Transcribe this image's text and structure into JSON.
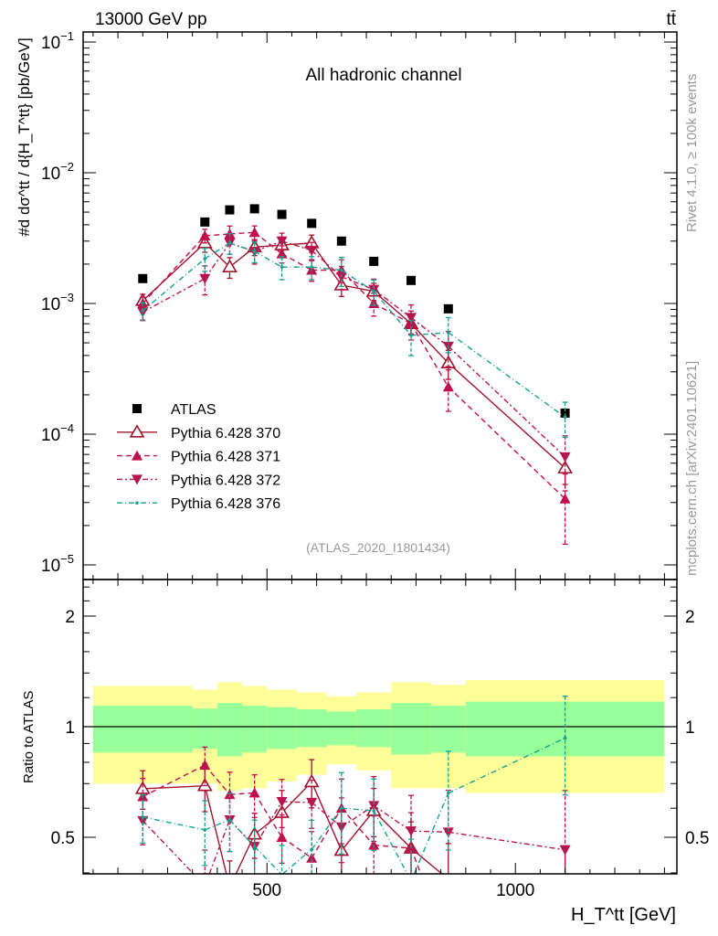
{
  "header": {
    "energy_label": "13000 GeV pp",
    "process_label": "tt̄",
    "channel_label": "All hadronic channel",
    "analysis_label": "(ATLAS_2020_I1801434)",
    "rivet_label": "Rivet 4.1.0, ≥ 100k events",
    "mcplots_label": "mcplots.cern.ch [arXiv:2401.10621]"
  },
  "colors": {
    "atlas": "#000000",
    "p370": "#a1122c",
    "p371": "#c0104c",
    "p372": "#b8154f",
    "p376": "#14a391",
    "band_inner": "#99ff99",
    "band_outer": "#ffff99"
  },
  "chart_data": {
    "type": "scatter",
    "title": "All hadronic channel",
    "xlabel": "H_T^tt [GeV]",
    "ylabel": "#d dσ^tt / d{H_T^tt} [pb/GeV]",
    "ratio_ylabel": "Ratio to ATLAS",
    "xlim": [
      130,
      1325
    ],
    "ylim": [
      1e-05,
      0.12
    ],
    "ratio_ylim": [
      0.4,
      2.5
    ],
    "yscale": "log",
    "x_ticks": [
      500,
      1000
    ],
    "x_tick_labels": [
      "500",
      "1000"
    ],
    "y_ticks": [
      0.1,
      0.01,
      0.001,
      0.0001,
      1e-05
    ],
    "y_tick_labels": [
      {
        "base": "10",
        "exp": "−1"
      },
      {
        "base": "10",
        "exp": "−2"
      },
      {
        "base": "10",
        "exp": "−3"
      },
      {
        "base": "10",
        "exp": "−4"
      },
      {
        "base": "10",
        "exp": "−5"
      }
    ],
    "ratio_ticks": [
      0.5,
      1,
      2
    ],
    "ratio_tick_labels": [
      "0.5",
      "1",
      "2"
    ],
    "legend_position": "lower-left",
    "bin_edges": [
      150,
      350,
      400,
      450,
      500,
      560,
      620,
      680,
      750,
      830,
      900,
      1300
    ],
    "x": [
      250,
      375,
      425,
      475,
      530,
      590,
      650,
      715,
      790,
      865,
      1100
    ],
    "data": {
      "name": "ATLAS",
      "values": [
        0.00155,
        0.0042,
        0.0052,
        0.0053,
        0.0048,
        0.0041,
        0.003,
        0.0021,
        0.0015,
        0.00091,
        0.000145
      ],
      "band_inner": {
        "low": [
          0.85,
          0.87,
          0.83,
          0.85,
          0.87,
          0.88,
          0.89,
          0.88,
          0.84,
          0.85,
          0.83
        ],
        "high": [
          1.14,
          1.12,
          1.16,
          1.14,
          1.13,
          1.115,
          1.1,
          1.115,
          1.16,
          1.14,
          1.17
        ]
      },
      "band_outer": {
        "low": [
          0.7,
          0.7,
          0.67,
          0.68,
          0.71,
          0.74,
          0.79,
          0.76,
          0.68,
          0.68,
          0.66
        ],
        "high": [
          1.29,
          1.26,
          1.32,
          1.29,
          1.26,
          1.24,
          1.21,
          1.24,
          1.32,
          1.3,
          1.34
        ]
      }
    },
    "series": [
      {
        "name": "Pythia 6.428 370",
        "key": "p370",
        "marker": "open-up",
        "dash": "",
        "values": [
          0.00105,
          0.0029,
          0.0019,
          0.0027,
          0.0028,
          0.0029,
          0.00138,
          0.00124,
          0.0007,
          0.00035,
          5.5e-05
        ],
        "rel_err": [
          0.12,
          0.15,
          0.18,
          0.14,
          0.15,
          0.15,
          0.18,
          0.15,
          0.18,
          0.25,
          0.25
        ]
      },
      {
        "name": "Pythia 6.428 371",
        "key": "p371",
        "marker": "up",
        "dash": "6,4",
        "values": [
          0.001,
          0.0033,
          0.0034,
          0.0035,
          0.0024,
          0.0018,
          0.0018,
          0.001,
          0.0007,
          0.00023,
          3.2e-05
        ],
        "rel_err": [
          0.12,
          0.12,
          0.15,
          0.12,
          0.15,
          0.18,
          0.2,
          0.2,
          0.25,
          0.35,
          0.55
        ]
      },
      {
        "name": "Pythia 6.428 372",
        "key": "p372",
        "marker": "down",
        "dash": "6,3,2,3",
        "values": [
          0.00086,
          0.00155,
          0.0029,
          0.0025,
          0.003,
          0.00255,
          0.0016,
          0.00128,
          0.00078,
          0.00047,
          6.7e-05
        ],
        "rel_err": [
          0.14,
          0.25,
          0.18,
          0.2,
          0.15,
          0.15,
          0.2,
          0.2,
          0.25,
          0.3,
          0.45
        ]
      },
      {
        "name": "Pythia 6.428 376",
        "key": "p376",
        "marker": "dot",
        "dash": "6,3,1,3",
        "values": [
          0.00088,
          0.0022,
          0.0029,
          0.0025,
          0.0019,
          0.0019,
          0.0018,
          0.00124,
          0.00057,
          0.0006,
          0.000135
        ],
        "rel_err": [
          0.15,
          0.2,
          0.18,
          0.18,
          0.2,
          0.2,
          0.25,
          0.22,
          0.3,
          0.3,
          0.3
        ]
      }
    ]
  }
}
